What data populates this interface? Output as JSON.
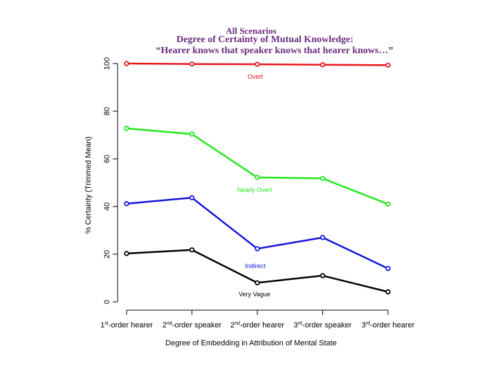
{
  "chart_data": {
    "type": "line",
    "title": "All Scenarios",
    "subtitle_line1": "Degree of Certainty of Mutual Knowledge:",
    "subtitle_line2": "“Hearer knows that speaker knows that hearer knows…”",
    "xlabel": "Degree of Embedding in Attribution of Mental State",
    "ylabel": "% Certainty (Trimmed Mean)",
    "ylim": [
      0,
      100
    ],
    "yticks": [
      0,
      20,
      40,
      60,
      80,
      100
    ],
    "categories": [
      {
        "num": "1",
        "sup": "st",
        "rest": "-order hearer"
      },
      {
        "num": "2",
        "sup": "nd",
        "rest": "-order speaker"
      },
      {
        "num": "2",
        "sup": "nd",
        "rest": "-order hearer"
      },
      {
        "num": "3",
        "sup": "rd",
        "rest": "-order speaker"
      },
      {
        "num": "3",
        "sup": "rd",
        "rest": "-order hearer"
      }
    ],
    "series": [
      {
        "name": "Overt",
        "color": "#e8141b",
        "values": [
          100,
          99.8,
          99.7,
          99.5,
          99.3
        ]
      },
      {
        "name": "Nearly Overt",
        "color": "#22e81a",
        "values": [
          72.8,
          70.4,
          52.2,
          51.8,
          41
        ]
      },
      {
        "name": "Indirect",
        "color": "#1212e0",
        "values": [
          41.2,
          43.7,
          22.3,
          27,
          14
        ]
      },
      {
        "name": "Very Vague",
        "color": "#000000",
        "values": [
          20.3,
          21.8,
          8,
          11,
          4.2
        ]
      }
    ],
    "grid": false,
    "legend": "inline labels"
  }
}
